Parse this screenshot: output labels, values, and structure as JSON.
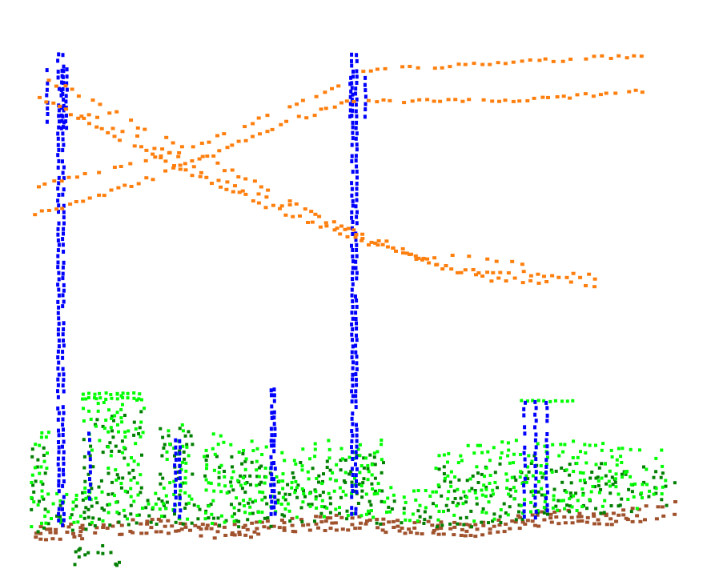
{
  "scene": {
    "background": "#ffffff",
    "point_size": 4,
    "classes": [
      {
        "key": "wire",
        "color": "#ff7f0e"
      },
      {
        "key": "tower",
        "color": "#0000ff"
      },
      {
        "key": "vegetation",
        "color": "#00ff00"
      },
      {
        "key": "low_vegetation",
        "color": "#007f00"
      },
      {
        "key": "ground",
        "color": "#a0522d"
      }
    ]
  }
}
